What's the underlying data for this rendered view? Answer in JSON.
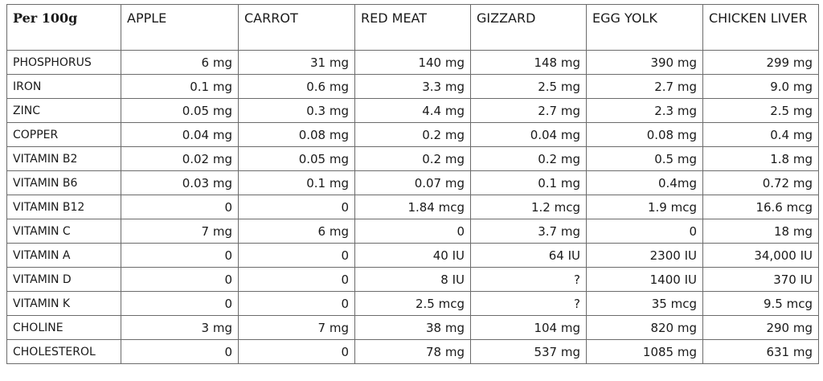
{
  "table": {
    "header": [
      "Per 100g",
      "APPLE",
      "CARROT",
      "RED MEAT",
      "GIZZARD",
      "EGG YOLK",
      "CHICKEN LIVER"
    ],
    "rows": [
      [
        "PHOSPHORUS",
        "6 mg",
        "31 mg",
        "140 mg",
        "148 mg",
        "390 mg",
        "299 mg"
      ],
      [
        "IRON",
        "0.1 mg",
        "0.6 mg",
        "3.3 mg",
        "2.5 mg",
        "2.7 mg",
        "9.0 mg"
      ],
      [
        "ZINC",
        "0.05 mg",
        "0.3 mg",
        "4.4 mg",
        "2.7 mg",
        "2.3 mg",
        "2.5 mg"
      ],
      [
        "COPPER",
        "0.04 mg",
        "0.08 mg",
        "0.2 mg",
        "0.04 mg",
        "0.08 mg",
        "0.4 mg"
      ],
      [
        "VITAMIN B2",
        "0.02 mg",
        "0.05 mg",
        "0.2 mg",
        "0.2 mg",
        "0.5 mg",
        "1.8 mg"
      ],
      [
        "VITAMIN B6",
        "0.03 mg",
        "0.1 mg",
        "0.07 mg",
        "0.1 mg",
        "0.4mg",
        "0.72 mg"
      ],
      [
        "VITAMIN B12",
        "0",
        "0",
        "1.84 mcg",
        "1.2 mcg",
        "1.9 mcg",
        "16.6 mcg"
      ],
      [
        "VITAMIN C",
        "7 mg",
        "6 mg",
        "0",
        "3.7 mg",
        "0",
        "18 mg"
      ],
      [
        "VITAMIN A",
        "0",
        "0",
        "40 IU",
        "64 IU",
        "2300 IU",
        "34,000 IU"
      ],
      [
        "VITAMIN D",
        "0",
        "0",
        "8 IU",
        "?",
        "1400 IU",
        "370 IU"
      ],
      [
        "VITAMIN K",
        "0",
        "0",
        "2.5 mcg",
        "?",
        "35 mcg",
        "9.5 mcg"
      ],
      [
        "CHOLINE",
        "3 mg",
        "7 mg",
        "38 mg",
        "104 mg",
        "820 mg",
        "290 mg"
      ],
      [
        "CHOLESTEROL",
        "0",
        "0",
        "78 mg",
        "537 mg",
        "1085 mg",
        "631 mg"
      ]
    ]
  }
}
